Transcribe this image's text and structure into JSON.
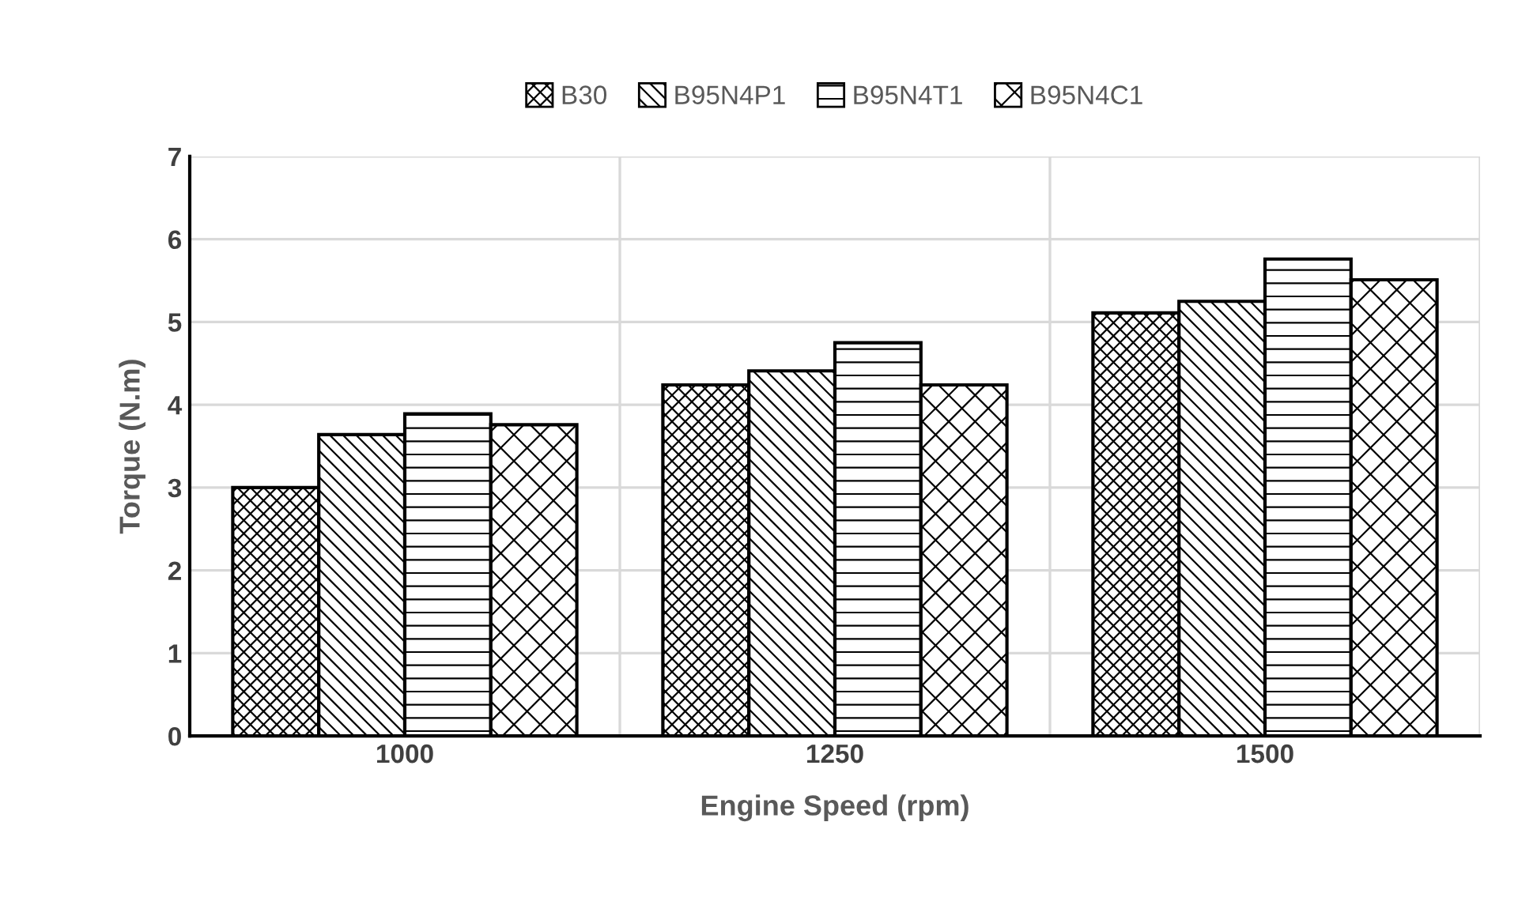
{
  "chart_data": {
    "type": "bar",
    "xlabel": "Engine Speed (rpm)",
    "ylabel": "Torque (N.m)",
    "categories": [
      "1000",
      "1250",
      "1500"
    ],
    "series": [
      {
        "name": "B30",
        "color": "#000000",
        "values": [
          3.0,
          4.24,
          5.11
        ]
      },
      {
        "name": "B95N4P1",
        "color": "#000000",
        "values": [
          3.64,
          4.41,
          5.25
        ]
      },
      {
        "name": "B95N4T1",
        "color": "#000000",
        "values": [
          3.89,
          4.75,
          5.76
        ]
      },
      {
        "name": "B95N4C1",
        "color": "#000000",
        "values": [
          3.76,
          4.24,
          5.51
        ]
      }
    ],
    "ylim": [
      0,
      7
    ],
    "yticks": [
      0,
      1,
      2,
      3,
      4,
      5,
      6,
      7
    ],
    "grid": true,
    "legend": "top"
  }
}
